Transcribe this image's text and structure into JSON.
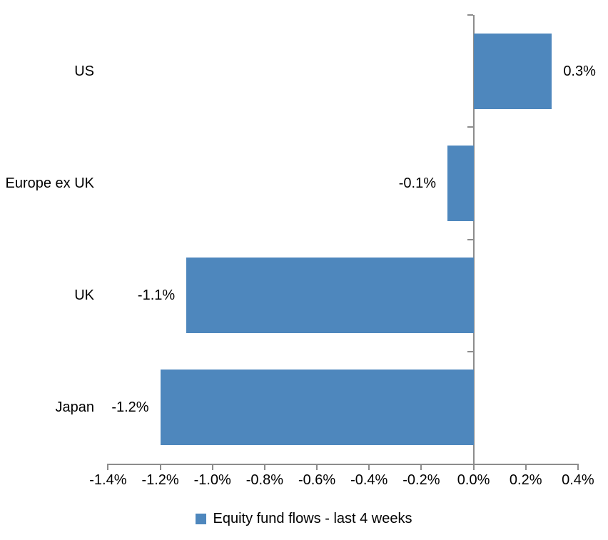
{
  "chart_data": {
    "type": "bar",
    "orientation": "horizontal",
    "title": "",
    "xlabel": "",
    "ylabel": "",
    "categories": [
      "US",
      "Europe ex UK",
      "UK",
      "Japan"
    ],
    "values": [
      0.3,
      -0.1,
      -1.1,
      -1.2
    ],
    "data_labels": [
      "0.3%",
      "-0.1%",
      "-1.1%",
      "-1.2%"
    ],
    "series_name": "Equity fund flows - last 4 weeks",
    "xlim": [
      -1.4,
      0.4
    ],
    "x_tick_values": [
      -1.4,
      -1.2,
      -1.0,
      -0.8,
      -0.6,
      -0.4,
      -0.2,
      0.0,
      0.2,
      0.4
    ],
    "x_tick_labels": [
      "-1.4%",
      "-1.2%",
      "-1.0%",
      "-0.8%",
      "-0.6%",
      "-0.4%",
      "-0.2%",
      "0.0%",
      "0.2%",
      "0.4%"
    ],
    "grid": false,
    "legend_position": "bottom",
    "bar_color": "#4E87BD",
    "axis_color": "#8C8C8C",
    "text_color": "#000000"
  }
}
